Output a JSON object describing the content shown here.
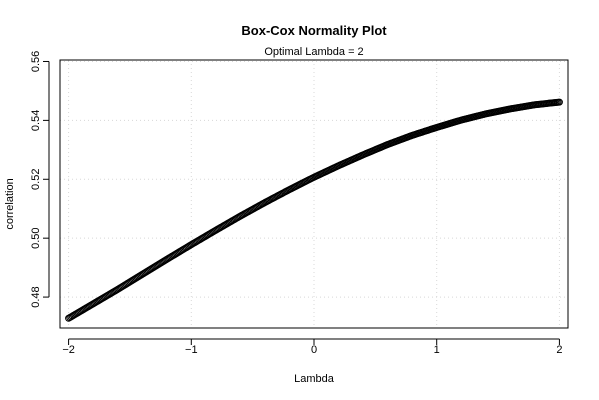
{
  "chart_data": {
    "type": "scatter",
    "title": "Box-Cox Normality Plot",
    "subtitle": "Optimal Lambda = 2",
    "xlabel": "Lambda",
    "ylabel": "correlation",
    "xlim": [
      -2.07,
      2.07
    ],
    "ylim": [
      0.4695,
      0.5605
    ],
    "xticks": [
      -2,
      -1,
      0,
      1,
      2
    ],
    "xtick_labels": [
      "−2",
      "−1",
      "0",
      "1",
      "2"
    ],
    "yticks": [
      0.48,
      0.5,
      0.52,
      0.54,
      0.56
    ],
    "ytick_labels": [
      "0.48",
      "0.50",
      "0.52",
      "0.54",
      "0.56"
    ],
    "grid": true,
    "marker": "open-circle",
    "series": [
      {
        "x": [
          -2.0,
          -1.8,
          -1.6,
          -1.4,
          -1.2,
          -1.0,
          -0.8,
          -0.6,
          -0.4,
          -0.2,
          0.0,
          0.2,
          0.4,
          0.6,
          0.8,
          1.0,
          1.2,
          1.4,
          1.6,
          1.8,
          2.0
        ],
        "values": [
          0.4728,
          0.4777,
          0.4826,
          0.4877,
          0.4928,
          0.4978,
          0.5027,
          0.5075,
          0.5121,
          0.5165,
          0.5207,
          0.5246,
          0.5283,
          0.5318,
          0.5349,
          0.5376,
          0.5401,
          0.5422,
          0.5439,
          0.5453,
          0.5462
        ]
      }
    ]
  }
}
